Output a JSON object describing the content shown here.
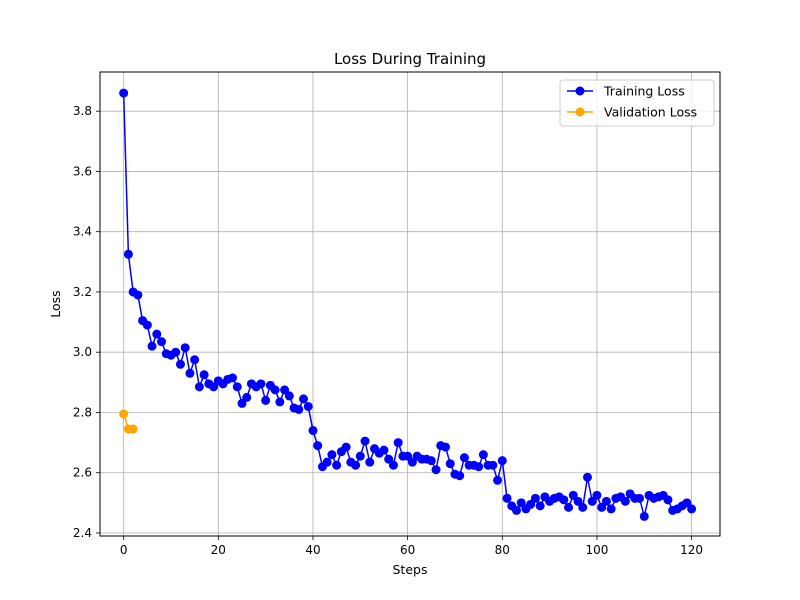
{
  "chart_data": {
    "type": "line",
    "title": "Loss During Training",
    "xlabel": "Steps",
    "ylabel": "Loss",
    "xlim": [
      -5,
      126
    ],
    "ylim": [
      2.39,
      3.93
    ],
    "xticks": [
      0,
      20,
      40,
      60,
      80,
      100,
      120
    ],
    "yticks": [
      2.4,
      2.6,
      2.8,
      3.0,
      3.2,
      3.4,
      3.6,
      3.8
    ],
    "grid": true,
    "legend_position": "top-right",
    "series": [
      {
        "name": "Training Loss",
        "color": "#0000ff",
        "x": [
          0,
          1,
          2,
          3,
          4,
          5,
          6,
          7,
          8,
          9,
          10,
          11,
          12,
          13,
          14,
          15,
          16,
          17,
          18,
          19,
          20,
          21,
          22,
          23,
          24,
          25,
          26,
          27,
          28,
          29,
          30,
          31,
          32,
          33,
          34,
          35,
          36,
          37,
          38,
          39,
          40,
          41,
          42,
          43,
          44,
          45,
          46,
          47,
          48,
          49,
          50,
          51,
          52,
          53,
          54,
          55,
          56,
          57,
          58,
          59,
          60,
          61,
          62,
          63,
          64,
          65,
          66,
          67,
          68,
          69,
          70,
          71,
          72,
          73,
          74,
          75,
          76,
          77,
          78,
          79,
          80,
          81,
          82,
          83,
          84,
          85,
          86,
          87,
          88,
          89,
          90,
          91,
          92,
          93,
          94,
          95,
          96,
          97,
          98,
          99,
          100,
          101,
          102,
          103,
          104,
          105,
          106,
          107,
          108,
          109,
          110,
          111,
          112,
          113,
          114,
          115,
          116,
          117,
          118,
          119,
          120
        ],
        "values": [
          3.86,
          3.325,
          3.2,
          3.19,
          3.105,
          3.09,
          3.02,
          3.06,
          3.035,
          2.995,
          2.99,
          3.0,
          2.96,
          3.015,
          2.93,
          2.975,
          2.885,
          2.925,
          2.895,
          2.885,
          2.905,
          2.895,
          2.91,
          2.915,
          2.885,
          2.83,
          2.85,
          2.895,
          2.885,
          2.895,
          2.84,
          2.89,
          2.875,
          2.835,
          2.875,
          2.855,
          2.815,
          2.81,
          2.845,
          2.82,
          2.74,
          2.69,
          2.62,
          2.635,
          2.66,
          2.625,
          2.67,
          2.685,
          2.635,
          2.625,
          2.655,
          2.705,
          2.635,
          2.68,
          2.665,
          2.675,
          2.645,
          2.625,
          2.7,
          2.655,
          2.655,
          2.635,
          2.655,
          2.645,
          2.645,
          2.64,
          2.61,
          2.69,
          2.685,
          2.63,
          2.595,
          2.59,
          2.65,
          2.625,
          2.625,
          2.62,
          2.66,
          2.625,
          2.625,
          2.575,
          2.64,
          2.515,
          2.49,
          2.475,
          2.5,
          2.48,
          2.495,
          2.515,
          2.49,
          2.52,
          2.505,
          2.515,
          2.52,
          2.51,
          2.485,
          2.525,
          2.505,
          2.485,
          2.585,
          2.505,
          2.525,
          2.485,
          2.505,
          2.48,
          2.515,
          2.52,
          2.505,
          2.53,
          2.515,
          2.515,
          2.455,
          2.525,
          2.515,
          2.52,
          2.525,
          2.51,
          2.475,
          2.48,
          2.49,
          2.5,
          2.48
        ]
      },
      {
        "name": "Validation Loss",
        "color": "#ffa500",
        "x": [
          0,
          1,
          2
        ],
        "values": [
          2.795,
          2.745,
          2.745
        ]
      }
    ]
  }
}
